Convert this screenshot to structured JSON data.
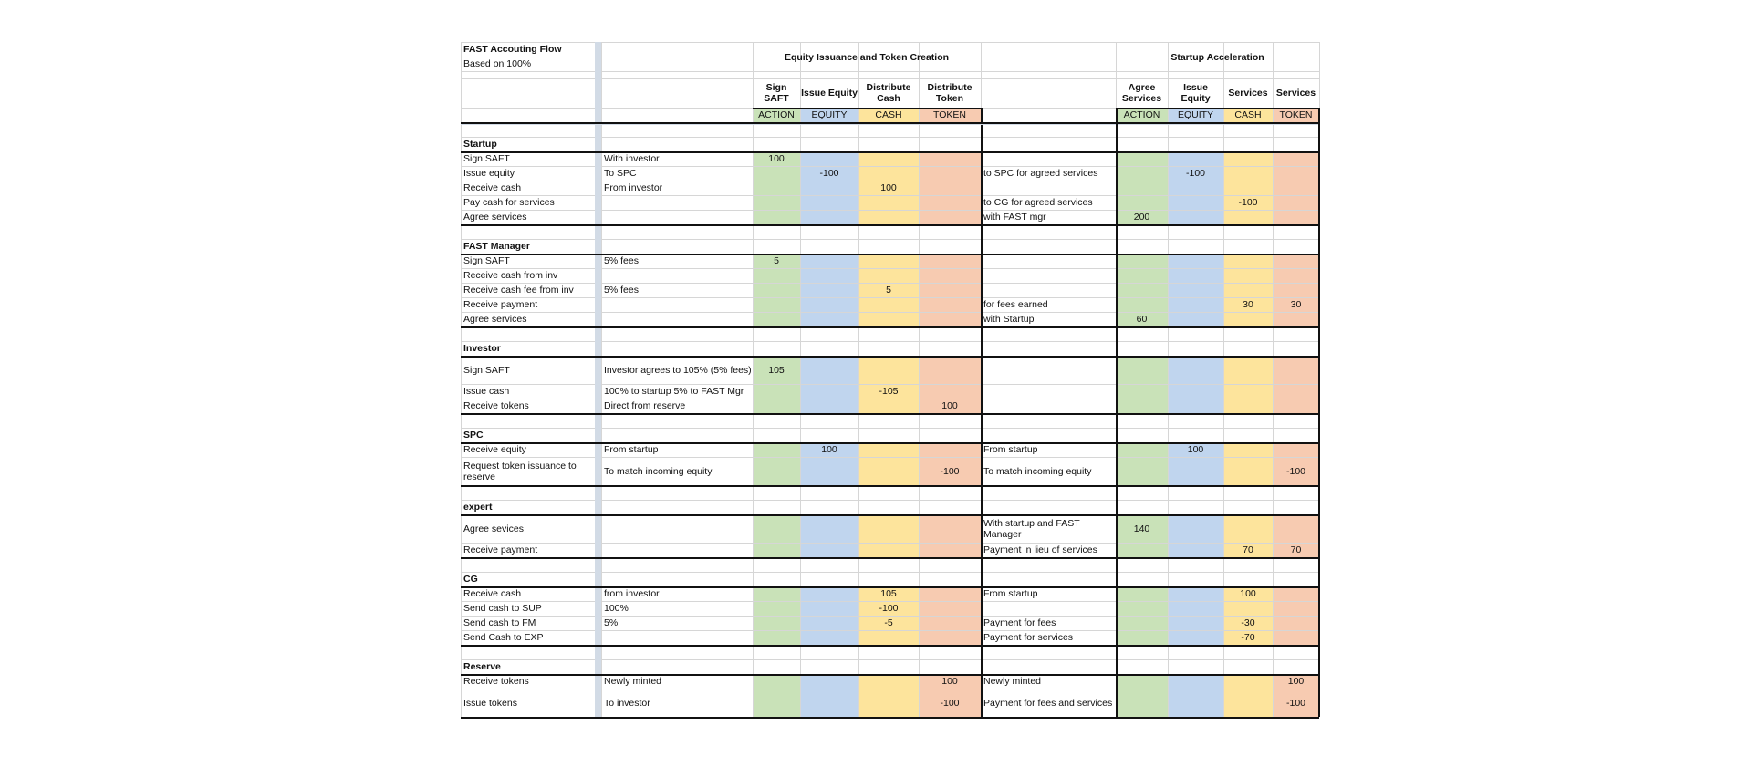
{
  "colors": {
    "action": "#c9e2b8",
    "equity": "#c0d5ee",
    "cash": "#fde49c",
    "token": "#f7cbb1",
    "grid": "#d6d6d6",
    "border": "#111111",
    "separator": "#d2dbe6"
  },
  "sheet": {
    "title": "FAST Accouting Flow",
    "subtitle": "Based on 100%",
    "group1_title": "Equity Issuance and Token Creation",
    "group2_title": "Startup Acceleration",
    "group1_headers": [
      "Sign SAFT",
      "Issue Equity",
      "Distribute Cash",
      "Distribute Token"
    ],
    "group1_tags": [
      "ACTION",
      "EQUITY",
      "CASH",
      "TOKEN"
    ],
    "group2_headers": [
      "Agree Services",
      "Issue Equity",
      "Services",
      "Services"
    ],
    "group2_tags": [
      "ACTION",
      "EQUITY",
      "CASH",
      "TOKEN"
    ]
  },
  "sections": [
    {
      "name": "Startup",
      "rows": [
        {
          "label": "Sign SAFT",
          "note": "With investor",
          "g1": [
            "100",
            "",
            "",
            ""
          ],
          "note2": "",
          "g2": [
            "",
            "",
            "",
            ""
          ]
        },
        {
          "label": "Issue equity",
          "note": "To SPC",
          "g1": [
            "",
            "-100",
            "",
            ""
          ],
          "note2": "to SPC for agreed services",
          "g2": [
            "",
            "-100",
            "",
            ""
          ]
        },
        {
          "label": "Receive cash",
          "note": "From investor",
          "g1": [
            "",
            "",
            "100",
            ""
          ],
          "note2": "",
          "g2": [
            "",
            "",
            "",
            ""
          ]
        },
        {
          "label": "Pay cash for services",
          "note": "",
          "g1": [
            "",
            "",
            "",
            ""
          ],
          "note2": "to CG for agreed services",
          "g2": [
            "",
            "",
            "-100",
            ""
          ]
        },
        {
          "label": "Agree services",
          "note": "",
          "g1": [
            "",
            "",
            "",
            ""
          ],
          "note2": "with FAST mgr",
          "g2": [
            "200",
            "",
            "",
            ""
          ]
        }
      ]
    },
    {
      "name": "FAST Manager",
      "rows": [
        {
          "label": "Sign SAFT",
          "note": "5% fees",
          "g1": [
            "5",
            "",
            "",
            ""
          ],
          "note2": "",
          "g2": [
            "",
            "",
            "",
            ""
          ]
        },
        {
          "label": "Receive cash from inv",
          "note": "",
          "g1": [
            "",
            "",
            "",
            ""
          ],
          "note2": "",
          "g2": [
            "",
            "",
            "",
            ""
          ]
        },
        {
          "label": "Receive cash fee from inv",
          "note": "5% fees",
          "g1": [
            "",
            "",
            "5",
            ""
          ],
          "note2": "",
          "g2": [
            "",
            "",
            "",
            ""
          ]
        },
        {
          "label": "Receive payment",
          "note": "",
          "g1": [
            "",
            "",
            "",
            ""
          ],
          "note2": "for fees earned",
          "g2": [
            "",
            "",
            "30",
            "30"
          ]
        },
        {
          "label": "Agree services",
          "note": "",
          "g1": [
            "",
            "",
            "",
            ""
          ],
          "note2": "with Startup",
          "g2": [
            "60",
            "",
            "",
            ""
          ]
        }
      ]
    },
    {
      "name": "Investor",
      "rows": [
        {
          "label": "Sign SAFT",
          "note": "Investor agrees to 105% (5% fees)",
          "g1": [
            "105",
            "",
            "",
            ""
          ],
          "note2": "",
          "g2": [
            "",
            "",
            "",
            ""
          ],
          "tall": true
        },
        {
          "label": "Issue cash",
          "note": "100% to startup 5% to FAST Mgr",
          "g1": [
            "",
            "",
            "-105",
            ""
          ],
          "note2": "",
          "g2": [
            "",
            "",
            "",
            ""
          ]
        },
        {
          "label": "Receive tokens",
          "note": "Direct from reserve",
          "g1": [
            "",
            "",
            "",
            "100"
          ],
          "note2": "",
          "g2": [
            "",
            "",
            "",
            ""
          ]
        }
      ]
    },
    {
      "name": "SPC",
      "rows": [
        {
          "label": "Receive equity",
          "note": "From startup",
          "g1": [
            "",
            "100",
            "",
            ""
          ],
          "note2": "From startup",
          "g2": [
            "",
            "100",
            "",
            ""
          ]
        },
        {
          "label": "Request token issuance to reserve",
          "note": "To match incoming equity",
          "g1": [
            "",
            "",
            "",
            "-100"
          ],
          "note2": "To match incoming equity",
          "g2": [
            "",
            "",
            "",
            "-100"
          ],
          "tall": true
        }
      ]
    },
    {
      "name": "expert",
      "rows": [
        {
          "label": "Agree sevices",
          "note": "",
          "g1": [
            "",
            "",
            "",
            ""
          ],
          "note2": "With startup and FAST Manager",
          "g2": [
            "140",
            "",
            "",
            ""
          ],
          "tall": true
        },
        {
          "label": "Receive payment",
          "note": "",
          "g1": [
            "",
            "",
            "",
            ""
          ],
          "note2": "Payment in lieu of services",
          "g2": [
            "",
            "",
            "70",
            "70"
          ]
        }
      ]
    },
    {
      "name": "CG",
      "rows": [
        {
          "label": "Receive cash",
          "note": "from investor",
          "g1": [
            "",
            "",
            "105",
            ""
          ],
          "note2": "From startup",
          "g2": [
            "",
            "",
            "100",
            ""
          ]
        },
        {
          "label": "Send cash to SUP",
          "note": "100%",
          "g1": [
            "",
            "",
            "-100",
            ""
          ],
          "note2": "",
          "g2": [
            "",
            "",
            "",
            ""
          ]
        },
        {
          "label": "Send cash to FM",
          "note": "5%",
          "g1": [
            "",
            "",
            "-5",
            ""
          ],
          "note2": "Payment for fees",
          "g2": [
            "",
            "",
            "-30",
            ""
          ]
        },
        {
          "label": "Send Cash to EXP",
          "note": "",
          "g1": [
            "",
            "",
            "",
            ""
          ],
          "note2": "Payment for services",
          "g2": [
            "",
            "",
            "-70",
            ""
          ]
        }
      ]
    },
    {
      "name": "Reserve",
      "rows": [
        {
          "label": "Receive tokens",
          "note": "Newly minted",
          "g1": [
            "",
            "",
            "",
            "100"
          ],
          "note2": "Newly minted",
          "g2": [
            "",
            "",
            "",
            "100"
          ]
        },
        {
          "label": "Issue tokens",
          "note": "To investor",
          "g1": [
            "",
            "",
            "",
            "-100"
          ],
          "note2": "Payment for fees and services",
          "g2": [
            "",
            "",
            "",
            "-100"
          ],
          "tall": true
        }
      ]
    }
  ]
}
